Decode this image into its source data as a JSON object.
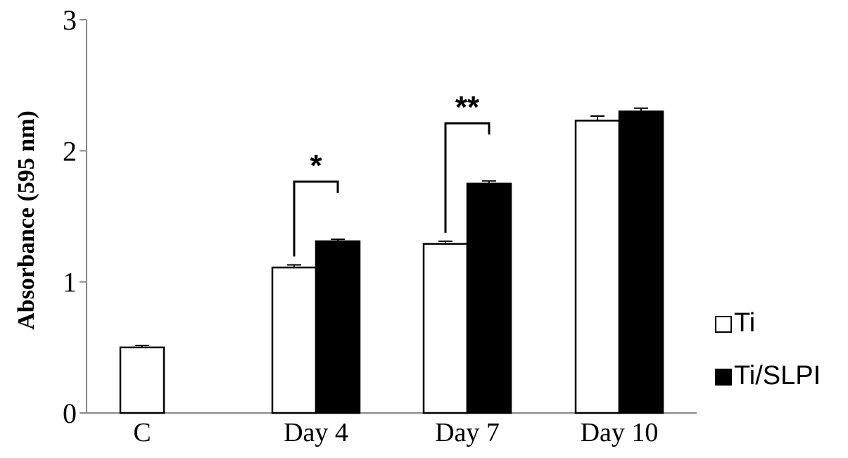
{
  "chart_data": {
    "type": "bar",
    "title": "",
    "xlabel": "",
    "ylabel": "Absorbance (595 nm)",
    "ylim": [
      0,
      3
    ],
    "y_ticks": [
      "0",
      "1",
      "2",
      "3"
    ],
    "categories": [
      "C",
      "Day 4",
      "Day 7",
      "Day 10"
    ],
    "series": [
      {
        "name": "Ti",
        "color": "#ffffff",
        "values": [
          0.5,
          1.11,
          1.29,
          2.23
        ],
        "errors": [
          0.015,
          0.02,
          0.02,
          0.035
        ]
      },
      {
        "name": "Ti/SLPI",
        "color": "#000000",
        "values": [
          null,
          1.31,
          1.75,
          2.3
        ],
        "errors": [
          null,
          0.015,
          0.02,
          0.025
        ]
      }
    ],
    "significance": [
      {
        "category": "Day 4",
        "label": "*"
      },
      {
        "category": "Day 7",
        "label": "**"
      }
    ],
    "legend_position": "right",
    "grid": false
  }
}
